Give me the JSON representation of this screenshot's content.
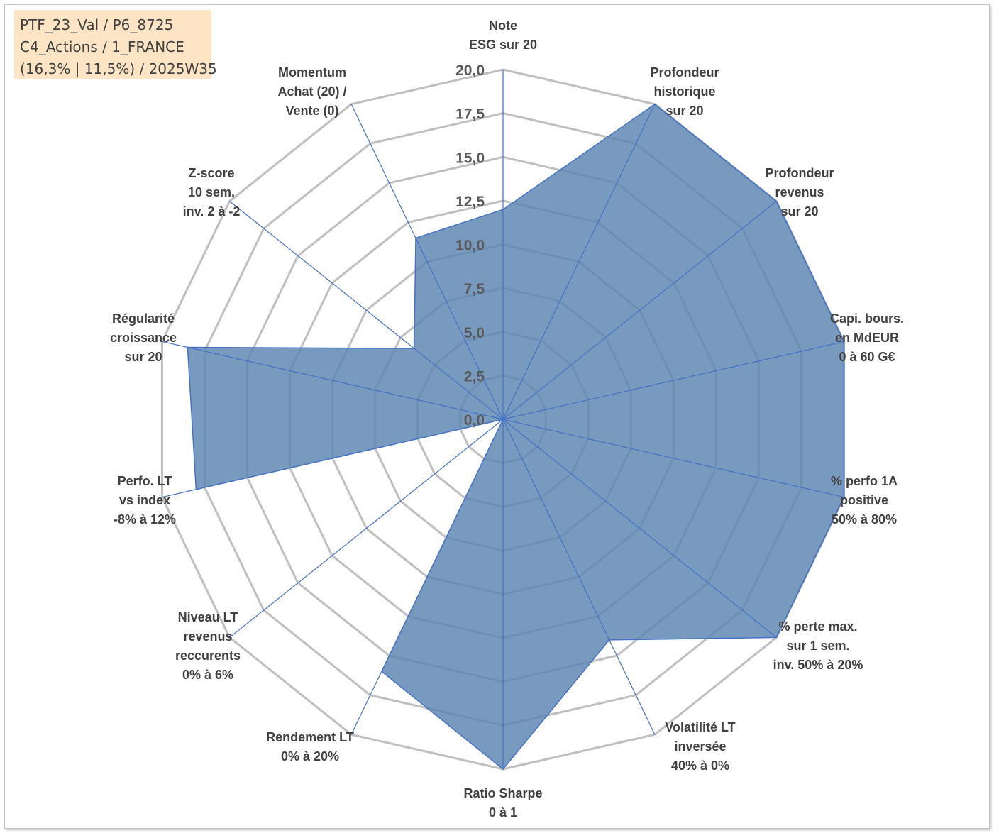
{
  "info_box": {
    "line1": "PTF_23_Val / P6_8725",
    "line2": "C4_Actions / 1_FRANCE",
    "line3": "(16,3% | 11,5%) / 2025W35"
  },
  "colors": {
    "fill": "#5b84b1",
    "stroke": "#4472c4",
    "grid": "#bfbfbf",
    "text": "#404040"
  },
  "chart_data": {
    "type": "radar",
    "range": [
      0,
      20
    ],
    "tick_labels": [
      "0,0",
      "2,5",
      "5,0",
      "7,5",
      "10,0",
      "12,5",
      "15,0",
      "17,5",
      "20,0"
    ],
    "grid": true,
    "axes": [
      [
        "Note",
        "ESG sur 20"
      ],
      [
        "Profondeur",
        "historique",
        "sur 20"
      ],
      [
        "Profondeur",
        "revenus",
        "sur 20"
      ],
      [
        "Capi. bours.",
        "en MdEUR",
        "0 à 60 G€"
      ],
      [
        "% perfo 1A",
        "positive",
        "50% à 80%"
      ],
      [
        "% perte max.",
        "sur 1 sem.",
        "inv. 50% à 20%"
      ],
      [
        "Volatilité LT",
        "inversée",
        "40% à 0%"
      ],
      [
        "Ratio Sharpe",
        "0 à 1"
      ],
      [
        "Rendement LT",
        "0% à 20%"
      ],
      [
        "Niveau LT",
        "revenus",
        "reccurents",
        "0% à 6%"
      ],
      [
        "Perfo. LT",
        "vs index",
        "-8% à 12%"
      ],
      [
        "Régularité",
        "croissance",
        "sur 20"
      ],
      [
        "Z-score",
        "10 sem.",
        "inv. 2 à -2"
      ],
      [
        "Momentum",
        "Achat (20) /",
        "Vente (0)"
      ]
    ],
    "series": [
      {
        "values": [
          12.0,
          20.0,
          20.0,
          20.0,
          20.0,
          20.0,
          14.0,
          20.0,
          16.0,
          0.0,
          18.0,
          18.5,
          6.5,
          11.5
        ]
      }
    ]
  }
}
